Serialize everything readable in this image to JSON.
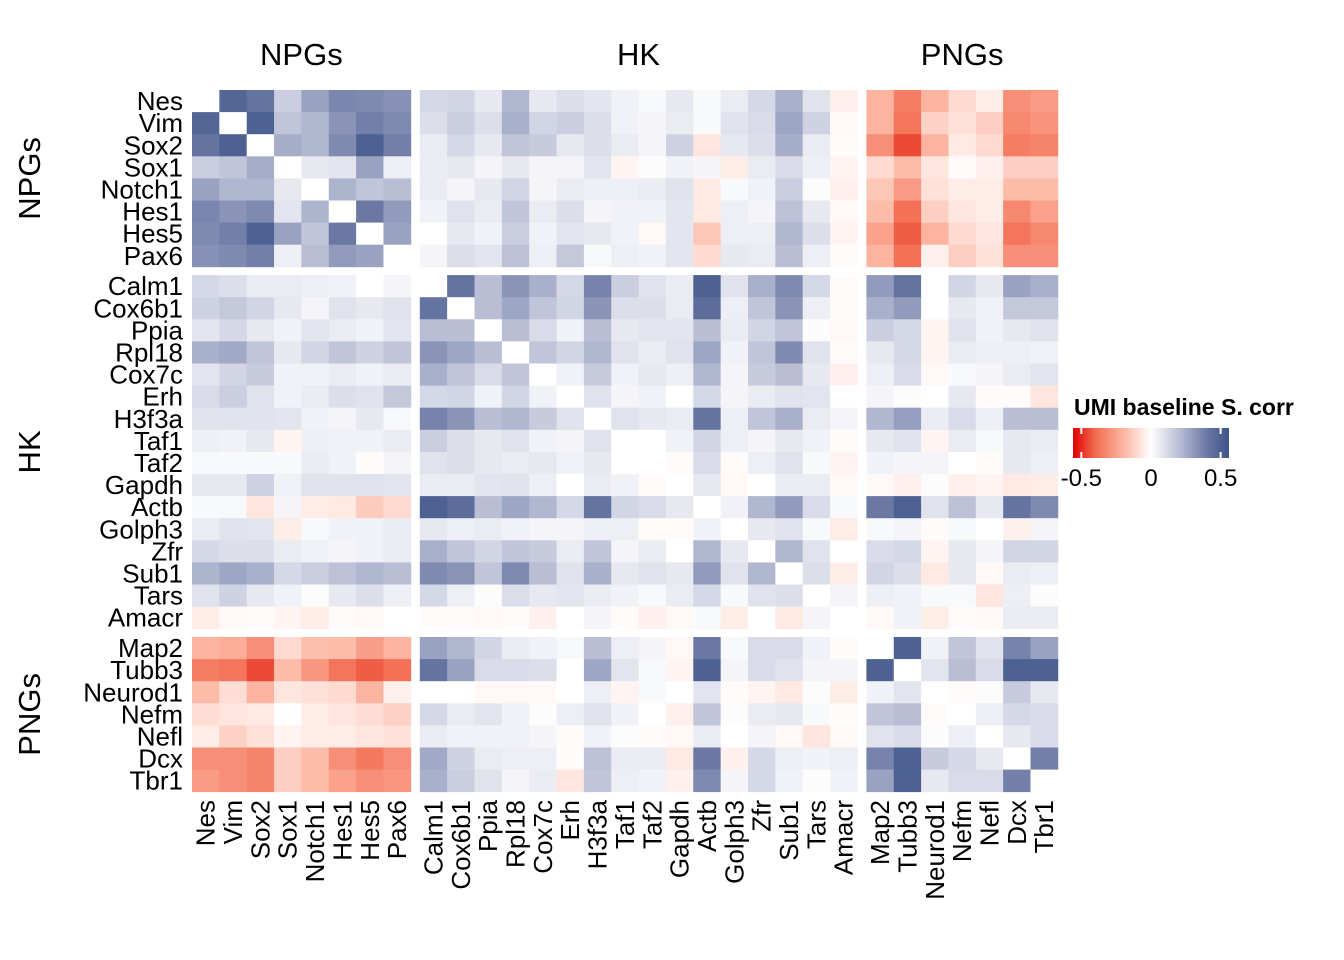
{
  "chart_data": {
    "type": "heatmap",
    "title": "",
    "legend": {
      "title": "UMI baseline S. corr",
      "ticks": [
        -0.5,
        0,
        0.5
      ],
      "tick_labels": [
        "-0.5",
        "0",
        "0.5"
      ],
      "range": [
        -0.56,
        0.56
      ],
      "placement": "right"
    },
    "colors": {
      "low": "#e00000",
      "mid": "#ffffff",
      "high": "#3c5488"
    },
    "groups": [
      {
        "name": "NPGs",
        "genes": [
          "Nes",
          "Vim",
          "Sox2",
          "Sox1",
          "Notch1",
          "Hes1",
          "Hes5",
          "Pax6"
        ]
      },
      {
        "name": "HK",
        "genes": [
          "Calm1",
          "Cox6b1",
          "Ppia",
          "Rpl18",
          "Cox7c",
          "Erh",
          "H3f3a",
          "Taf1",
          "Taf2",
          "Gapdh",
          "Actb",
          "Golph3",
          "Zfr",
          "Sub1",
          "Tars",
          "Amacr"
        ]
      },
      {
        "name": "PNGs",
        "genes": [
          "Map2",
          "Tubb3",
          "Neurod1",
          "Nefm",
          "Nefl",
          "Dcx",
          "Tbr1"
        ]
      }
    ],
    "values": [
      [
        null,
        0.48,
        0.42,
        0.15,
        0.28,
        0.36,
        0.35,
        0.33,
        0.12,
        0.13,
        0.07,
        0.22,
        0.07,
        0.1,
        0.08,
        0.04,
        0.02,
        0.07,
        0.02,
        0.06,
        0.12,
        0.24,
        0.09,
        -0.04,
        -0.2,
        -0.35,
        -0.2,
        -0.1,
        -0.05,
        -0.3,
        -0.27
      ],
      [
        0.48,
        null,
        0.5,
        0.18,
        0.22,
        0.32,
        0.38,
        0.35,
        0.1,
        0.15,
        0.1,
        0.24,
        0.13,
        0.15,
        0.1,
        0.04,
        0.03,
        0.06,
        0.02,
        0.09,
        0.11,
        0.27,
        0.14,
        -0.02,
        -0.2,
        -0.37,
        -0.12,
        -0.08,
        -0.13,
        -0.32,
        -0.29
      ],
      [
        0.42,
        0.5,
        null,
        0.25,
        0.22,
        0.35,
        0.5,
        0.38,
        0.06,
        0.12,
        0.07,
        0.18,
        0.16,
        0.07,
        0.1,
        0.06,
        0.03,
        0.14,
        -0.07,
        0.07,
        0.1,
        0.25,
        0.06,
        -0.01,
        -0.3,
        -0.45,
        -0.2,
        -0.06,
        -0.1,
        -0.35,
        -0.33
      ],
      [
        0.15,
        0.18,
        0.25,
        null,
        0.07,
        0.08,
        0.28,
        0.05,
        0.06,
        0.07,
        0.03,
        0.07,
        0.03,
        0.03,
        0.08,
        -0.03,
        0.01,
        0.04,
        0.03,
        -0.05,
        0.06,
        0.11,
        0.05,
        -0.03,
        -0.1,
        -0.18,
        -0.07,
        -0.01,
        -0.04,
        -0.13,
        -0.13
      ],
      [
        0.28,
        0.22,
        0.22,
        0.07,
        null,
        0.23,
        0.18,
        0.2,
        0.06,
        0.03,
        0.07,
        0.13,
        0.03,
        0.06,
        0.05,
        0.05,
        0.06,
        0.09,
        -0.06,
        0.02,
        0.04,
        0.15,
        0.01,
        -0.04,
        -0.15,
        -0.27,
        -0.08,
        -0.05,
        -0.05,
        -0.18,
        -0.18
      ],
      [
        0.36,
        0.32,
        0.35,
        0.08,
        0.23,
        null,
        0.4,
        0.3,
        0.04,
        0.09,
        0.06,
        0.18,
        0.06,
        0.1,
        0.03,
        0.04,
        0.04,
        0.08,
        -0.06,
        0.05,
        0.03,
        0.19,
        0.07,
        -0.02,
        -0.18,
        -0.38,
        -0.13,
        -0.07,
        -0.05,
        -0.32,
        -0.25
      ],
      [
        0.35,
        0.38,
        0.5,
        0.28,
        0.18,
        0.4,
        null,
        0.28,
        0,
        0.07,
        0.04,
        0.15,
        0.04,
        0.08,
        0.07,
        0.04,
        -0.02,
        0.08,
        -0.15,
        0.05,
        0.05,
        0.22,
        0.1,
        -0.03,
        -0.25,
        -0.42,
        -0.2,
        -0.1,
        -0.07,
        -0.37,
        -0.32
      ],
      [
        0.33,
        0.35,
        0.38,
        0.05,
        0.2,
        0.3,
        0.28,
        null,
        0.03,
        0.1,
        0.08,
        0.19,
        0.05,
        0.17,
        0.02,
        0.05,
        0.04,
        0.08,
        -0.1,
        0.07,
        0.06,
        0.2,
        0.05,
        -0.01,
        -0.2,
        -0.38,
        -0.04,
        -0.13,
        -0.08,
        -0.3,
        -0.3
      ],
      [
        0.12,
        0.1,
        0.06,
        0.06,
        0.05,
        0.04,
        0,
        0.03,
        null,
        0.42,
        0.2,
        0.32,
        0.24,
        0.12,
        0.37,
        0.15,
        0.09,
        0.06,
        0.5,
        0.09,
        0.24,
        0.35,
        0.12,
        -0.01,
        0.3,
        0.42,
        0,
        0.13,
        0.07,
        0.28,
        0.24
      ],
      [
        0.14,
        0.17,
        0.13,
        0.07,
        0.03,
        0.09,
        0.07,
        0.09,
        0.42,
        null,
        0.2,
        0.27,
        0.18,
        0.13,
        0.32,
        0.1,
        0.1,
        0.06,
        0.45,
        0.05,
        0.18,
        0.32,
        0.05,
        -0.01,
        0.24,
        0.3,
        0,
        0.07,
        0.04,
        0.17,
        0.17
      ],
      [
        0.08,
        0.12,
        0.07,
        0.04,
        0.08,
        0.06,
        0.04,
        0.08,
        0.2,
        0.2,
        null,
        0.2,
        0.11,
        0.04,
        0.2,
        0.07,
        0.08,
        0.08,
        0.2,
        0.06,
        0.13,
        0.18,
        0.01,
        -0.02,
        0.15,
        0.12,
        -0.03,
        0.09,
        0.04,
        0.07,
        0.09
      ],
      [
        0.24,
        0.26,
        0.18,
        0.07,
        0.13,
        0.18,
        0.14,
        0.18,
        0.32,
        0.27,
        0.2,
        null,
        0.18,
        0.13,
        0.22,
        0.09,
        0.06,
        0.09,
        0.27,
        0.04,
        0.18,
        0.35,
        0.09,
        -0.01,
        0.07,
        0.12,
        -0.03,
        0.06,
        0.05,
        0.05,
        0.04
      ],
      [
        0.08,
        0.13,
        0.16,
        0.04,
        0.04,
        0.06,
        0.04,
        0.06,
        0.24,
        0.18,
        0.11,
        0.18,
        null,
        0.04,
        0.16,
        0.04,
        0.07,
        0.05,
        0.22,
        0.03,
        0.16,
        0.2,
        0.07,
        -0.04,
        0.05,
        0.11,
        -0.02,
        0.02,
        0.03,
        0.06,
        0.08
      ],
      [
        0.11,
        0.15,
        0.09,
        0.04,
        0.06,
        0.1,
        0.09,
        0.17,
        0.12,
        0.13,
        0.04,
        0.13,
        0.04,
        null,
        0.09,
        0.03,
        0.04,
        0,
        0.12,
        0.03,
        0.06,
        0.09,
        0.08,
        0,
        0.03,
        0.01,
        0,
        0.07,
        -0.01,
        -0.01,
        -0.07
      ],
      [
        0.09,
        0.09,
        0.09,
        0.08,
        0.04,
        0.03,
        0.07,
        0.02,
        0.37,
        0.32,
        0.2,
        0.22,
        0.16,
        0.09,
        null,
        0.09,
        0.07,
        0.06,
        0.42,
        0.05,
        0.18,
        0.24,
        0.06,
        0.03,
        0.22,
        0.29,
        0.06,
        0.11,
        0.05,
        0.2,
        0.2
      ],
      [
        0.05,
        0.04,
        0.07,
        -0.03,
        0.05,
        0.04,
        0.04,
        0.06,
        0.15,
        0.1,
        0.07,
        0.09,
        0.04,
        0.03,
        0.09,
        null,
        0,
        0.04,
        0.13,
        0.05,
        0.03,
        0.07,
        0.04,
        -0.01,
        0.07,
        0.09,
        -0.03,
        0.06,
        0.02,
        0.07,
        0.06
      ],
      [
        0.02,
        0.02,
        0.02,
        0.02,
        0.06,
        0.04,
        -0.01,
        0.03,
        0.09,
        0.1,
        0.07,
        0.06,
        0.07,
        0.04,
        0.07,
        0,
        null,
        -0.01,
        0.11,
        -0.01,
        0.05,
        0.09,
        0.02,
        -0.03,
        0.04,
        0.03,
        0.03,
        0,
        -0.01,
        0.07,
        0.05
      ],
      [
        0.07,
        0.07,
        0.14,
        0.04,
        0.09,
        0.09,
        0.09,
        0.08,
        0.06,
        0.06,
        0.08,
        0.09,
        0.05,
        0,
        0.06,
        0.04,
        -0.01,
        null,
        0.07,
        -0.02,
        0,
        0.06,
        0.06,
        -0.02,
        -0.02,
        -0.04,
        0.01,
        -0.04,
        -0.03,
        -0.06,
        -0.05
      ],
      [
        0.02,
        0.02,
        -0.07,
        0.03,
        -0.05,
        -0.06,
        -0.14,
        -0.1,
        0.5,
        0.45,
        0.2,
        0.27,
        0.22,
        0.12,
        0.42,
        0.13,
        0.11,
        0.07,
        null,
        0.04,
        0.22,
        0.3,
        0.11,
        0.02,
        0.4,
        0.5,
        0.09,
        0.19,
        0.07,
        0.42,
        0.35
      ],
      [
        0.06,
        0.09,
        0.08,
        -0.05,
        0.02,
        0.04,
        0.04,
        0.06,
        0.07,
        0.05,
        0.06,
        0.04,
        0.03,
        0.03,
        0.05,
        0.05,
        -0.01,
        -0.01,
        0.04,
        null,
        0.07,
        0.09,
        0.02,
        -0.05,
        0.02,
        0.03,
        -0.01,
        0.02,
        0,
        -0.04,
        0.03
      ],
      [
        0.12,
        0.1,
        0.1,
        0.06,
        0.04,
        0.03,
        0.04,
        0.06,
        0.24,
        0.18,
        0.13,
        0.18,
        0.16,
        0.06,
        0.18,
        0.03,
        0.06,
        0,
        0.22,
        0.07,
        null,
        0.22,
        0.09,
        0,
        0.11,
        0.12,
        -0.03,
        0.07,
        0.03,
        0.13,
        0.13
      ],
      [
        0.23,
        0.27,
        0.24,
        0.12,
        0.15,
        0.19,
        0.22,
        0.2,
        0.35,
        0.32,
        0.18,
        0.35,
        0.2,
        0.09,
        0.24,
        0.07,
        0.09,
        0.07,
        0.3,
        0.09,
        0.22,
        null,
        0.1,
        -0.05,
        0.13,
        0.1,
        -0.06,
        0.07,
        -0.02,
        0.06,
        0.05
      ],
      [
        0.09,
        0.14,
        0.07,
        0.04,
        0.01,
        0.07,
        0.1,
        0.05,
        0.12,
        0.05,
        0.01,
        0.1,
        0.07,
        0.08,
        0.06,
        0.04,
        0.02,
        0.06,
        0.12,
        0.02,
        0.09,
        0.1,
        null,
        0.03,
        0.05,
        0.04,
        0.02,
        0.02,
        -0.07,
        0.05,
        0.01
      ],
      [
        -0.05,
        -0.02,
        -0.01,
        -0.03,
        -0.05,
        -0.01,
        -0.02,
        0,
        -0.01,
        -0.01,
        -0.02,
        -0.01,
        -0.04,
        0,
        0.03,
        -0.01,
        -0.04,
        -0.02,
        0.02,
        -0.05,
        0,
        -0.06,
        0.03,
        null,
        -0.02,
        0.04,
        -0.05,
        -0.01,
        -0.02,
        0.06,
        0.06
      ],
      [
        -0.2,
        -0.22,
        -0.3,
        -0.1,
        -0.17,
        -0.18,
        -0.26,
        -0.2,
        0.28,
        0.22,
        0.13,
        0.06,
        0.04,
        0.02,
        0.2,
        0.05,
        0.03,
        -0.02,
        0.4,
        0.02,
        0.11,
        0.11,
        0.04,
        -0.01,
        null,
        0.5,
        0.04,
        0.18,
        0.09,
        0.37,
        0.28
      ],
      [
        -0.35,
        -0.37,
        -0.45,
        -0.18,
        -0.28,
        -0.37,
        -0.42,
        -0.38,
        0.42,
        0.28,
        0.11,
        0.11,
        0.1,
        0,
        0.27,
        0.08,
        0.02,
        -0.03,
        0.5,
        0.03,
        0.11,
        0.09,
        0.03,
        0.03,
        0.5,
        null,
        0.08,
        0.2,
        0.11,
        0.5,
        0.5
      ],
      [
        -0.18,
        -0.09,
        -0.2,
        -0.07,
        -0.08,
        -0.1,
        -0.2,
        -0.04,
        0,
        0,
        -0.02,
        -0.02,
        -0.02,
        0,
        0.05,
        -0.03,
        0.02,
        0,
        0.08,
        -0.01,
        -0.03,
        -0.06,
        0.01,
        -0.05,
        0.04,
        0.08,
        null,
        -0.01,
        0.01,
        0.16,
        0.07
      ],
      [
        -0.09,
        -0.07,
        -0.06,
        0,
        -0.05,
        -0.07,
        -0.09,
        -0.12,
        0.12,
        0.06,
        0.08,
        0.04,
        0.01,
        0.05,
        0.09,
        0.04,
        0,
        -0.04,
        0.18,
        0.01,
        0.06,
        0.07,
        0.02,
        -0.01,
        0.18,
        0.2,
        -0.01,
        null,
        0.05,
        0.12,
        0.11
      ],
      [
        -0.05,
        -0.12,
        -0.08,
        -0.03,
        -0.05,
        -0.05,
        -0.07,
        -0.08,
        0.06,
        0.04,
        0.04,
        0.04,
        0.03,
        -0.01,
        0.04,
        0.01,
        -0.01,
        -0.02,
        0.06,
        0,
        0.03,
        -0.02,
        -0.07,
        -0.02,
        0.09,
        0.11,
        0.01,
        0.05,
        null,
        0.07,
        0.11
      ],
      [
        -0.3,
        -0.3,
        -0.33,
        -0.13,
        -0.18,
        -0.3,
        -0.36,
        -0.3,
        0.26,
        0.14,
        0.06,
        0.05,
        0.05,
        -0.01,
        0.19,
        0.06,
        0.06,
        -0.06,
        0.4,
        -0.04,
        0.12,
        0.05,
        0.04,
        0.05,
        0.37,
        0.5,
        0.16,
        0.12,
        0.07,
        null,
        0.38
      ],
      [
        -0.27,
        -0.3,
        -0.33,
        -0.13,
        -0.18,
        -0.25,
        -0.3,
        -0.28,
        0.24,
        0.15,
        0.09,
        0.03,
        0.06,
        -0.07,
        0.18,
        0.05,
        0.04,
        -0.04,
        0.35,
        0.03,
        0.12,
        0.04,
        0.01,
        0.04,
        0.28,
        0.5,
        0.07,
        0.11,
        0.11,
        0.38,
        null
      ]
    ]
  }
}
